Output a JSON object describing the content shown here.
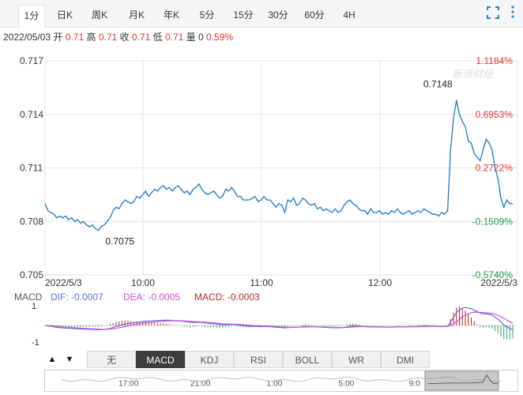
{
  "tabs": [
    "1分",
    "日K",
    "周K",
    "月K",
    "年K",
    "5分",
    "15分",
    "30分",
    "60分",
    "4H"
  ],
  "active_tab": 0,
  "icons": {
    "fullscreen": "fullscreen-icon",
    "more": "more-icon"
  },
  "info": {
    "date": "2022/05/03",
    "open_label": "开",
    "open": "0.71",
    "high_label": "高",
    "high": "0.71",
    "close_label": "收",
    "close": "0.71",
    "low_label": "低",
    "low": "0.71",
    "vol_label": "量",
    "vol": "0",
    "change": "0.59%"
  },
  "watermark": "新浪财经",
  "macd": {
    "name": "MACD",
    "dif_label": "DIF: -0.0007",
    "dea_label": "DEA: -0.0005",
    "macd_label": "MACD: -0.0003",
    "ticks": [
      "1",
      "-1"
    ]
  },
  "indicator_buttons": [
    "无",
    "MACD",
    "KDJ",
    "RSI",
    "BOLL",
    "WR",
    "DMI"
  ],
  "active_indicator": 1,
  "nav_arrows": [
    "▲",
    "▼"
  ],
  "timeline_labels": [
    "17:00",
    "21:00",
    "1:00",
    "5:00",
    "9:0"
  ],
  "colors": {
    "line": "#1a7ac6",
    "up": "#e3342f",
    "down": "#1a9e3a",
    "dif": "#5b6ee1",
    "dea": "#d14fd8",
    "macd_up": "#b5291c",
    "macd_down": "#2aa56a",
    "grid": "#e6e6e6"
  },
  "chart_data": {
    "type": "line",
    "x_ticks": [
      "2022/5/3",
      "10:00",
      "11:00",
      "12:00",
      "2022/5/3"
    ],
    "y_ticks": [
      0.717,
      0.714,
      0.711,
      0.708,
      0.705
    ],
    "y_tick_labels": [
      "0.717",
      "0.714",
      "0.711",
      "0.708",
      "0.705"
    ],
    "pct_ticks": [
      "1.1184%",
      "0.6953%",
      "0.2722%",
      "-0.1509%",
      "-0.5740%"
    ],
    "ylim": [
      0.705,
      0.717
    ],
    "annotations": [
      {
        "label": "0.7148",
        "index": 0.84,
        "value": 0.7148
      },
      {
        "label": "0.7075",
        "index": 0.16,
        "value": 0.7075
      }
    ],
    "series": [
      {
        "values": [
          0.709,
          0.7086,
          0.7085,
          0.7084,
          0.7082,
          0.7083,
          0.7082,
          0.7083,
          0.7081,
          0.7082,
          0.708,
          0.7081,
          0.7079,
          0.708,
          0.7078,
          0.7077,
          0.7078,
          0.7076,
          0.7075,
          0.7077,
          0.7078,
          0.708,
          0.7082,
          0.7086,
          0.7088,
          0.7087,
          0.709,
          0.7092,
          0.7091,
          0.709,
          0.7091,
          0.7094,
          0.7093,
          0.7095,
          0.7097,
          0.7094,
          0.7096,
          0.7098,
          0.7097,
          0.7099,
          0.71,
          0.7098,
          0.7099,
          0.7097,
          0.7099,
          0.71,
          0.7098,
          0.7096,
          0.7097,
          0.7095,
          0.7098,
          0.7099,
          0.7101,
          0.7098,
          0.7096,
          0.7095,
          0.7096,
          0.7097,
          0.7095,
          0.7093,
          0.7094,
          0.7098,
          0.7097,
          0.7099,
          0.7097,
          0.7094,
          0.7094,
          0.7092,
          0.7092,
          0.7092,
          0.7093,
          0.7094,
          0.7091,
          0.7092,
          0.7094,
          0.7092,
          0.7092,
          0.709,
          0.7088,
          0.709,
          0.7089,
          0.7085,
          0.7092,
          0.7091,
          0.7093,
          0.7089,
          0.709,
          0.7093,
          0.7092,
          0.709,
          0.7089,
          0.709,
          0.7087,
          0.7088,
          0.7086,
          0.7087,
          0.7086,
          0.7085,
          0.7087,
          0.7085,
          0.7086,
          0.7089,
          0.7091,
          0.7092,
          0.709,
          0.7089,
          0.7087,
          0.7086,
          0.7086,
          0.7084,
          0.7087,
          0.7085,
          0.7085,
          0.7086,
          0.7084,
          0.7085,
          0.7084,
          0.7086,
          0.7085,
          0.7087,
          0.7085,
          0.7084,
          0.7085,
          0.7086,
          0.7084,
          0.7085,
          0.7086,
          0.7085,
          0.7087,
          0.7086,
          0.7085,
          0.7084,
          0.7084,
          0.7083,
          0.7085,
          0.7084,
          0.7086,
          0.712,
          0.7138,
          0.7148,
          0.714,
          0.7136,
          0.7133,
          0.7125,
          0.7124,
          0.7118,
          0.7116,
          0.7114,
          0.712,
          0.7126,
          0.7124,
          0.712,
          0.711,
          0.7104,
          0.7093,
          0.7088,
          0.7092,
          0.709,
          0.709
        ]
      }
    ]
  }
}
